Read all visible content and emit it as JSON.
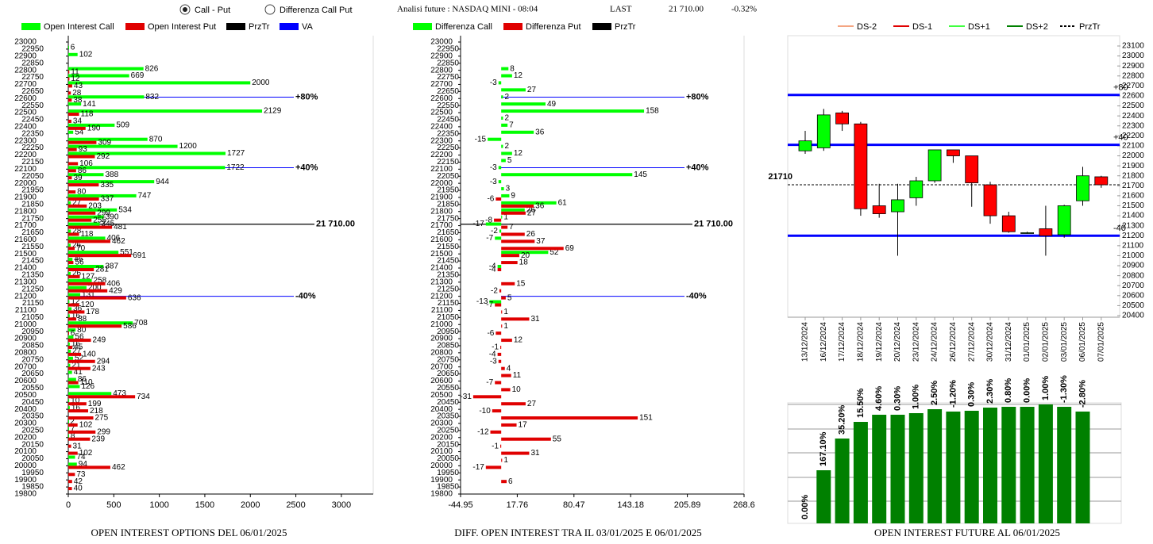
{
  "header": {
    "options": [
      {
        "label": "Call - Put",
        "checked": true
      },
      {
        "label": "Differenza Call Put",
        "checked": false
      }
    ],
    "title": "Analisi future : NASDAQ MINI - 08:04",
    "last_label": "LAST",
    "last": "21 710.00",
    "change": "-0.32%"
  },
  "chart_data": [
    {
      "type": "hbar",
      "title": "OPEN INTEREST OPTIONS DEL 06/01/2025",
      "y": [
        22950,
        22900,
        22850,
        22800,
        22750,
        22700,
        22650,
        22600,
        22550,
        22500,
        22450,
        22400,
        22350,
        22300,
        22250,
        22200,
        22150,
        22100,
        22050,
        22000,
        21950,
        21900,
        21850,
        21800,
        21750,
        21700,
        21650,
        21600,
        21550,
        21500,
        21450,
        21400,
        21350,
        21300,
        21250,
        21200,
        21150,
        21100,
        21050,
        21000,
        20950,
        20900,
        20850,
        20800,
        20750,
        20700,
        20650,
        20600,
        20550,
        20500,
        20450,
        20400,
        20350,
        20300,
        20250,
        20200,
        20150,
        20100,
        20050,
        20000,
        19950,
        19900,
        19850
      ],
      "series": [
        {
          "name": "Open Interest Call",
          "color": "#00ff00",
          "values": [
            6,
            102,
            null,
            826,
            669,
            2000,
            null,
            832,
            141,
            2129,
            null,
            509,
            54,
            870,
            1200,
            1727,
            null,
            1722,
            388,
            944,
            null,
            747,
            27,
            534,
            390,
            345,
            28,
            406,
            26,
            551,
            46,
            387,
            26,
            258,
            200,
            131,
            12,
            36,
            16,
            708,
            80,
            56,
            16,
            27,
            52,
            21,
            41,
            86,
            126,
            473,
            10,
            16,
            null,
            2,
            7,
            8,
            null,
            null,
            74,
            94,
            null,
            null,
            null
          ]
        },
        {
          "name": "Open Interest Put",
          "color": "#e00000",
          "values": [
            null,
            null,
            null,
            11,
            12,
            43,
            28,
            38,
            null,
            118,
            34,
            190,
            null,
            309,
            93,
            292,
            106,
            86,
            39,
            335,
            80,
            337,
            203,
            299,
            255,
            481,
            118,
            462,
            70,
            691,
            56,
            281,
            127,
            406,
            429,
            636,
            120,
            178,
            88,
            586,
            6,
            249,
            45,
            140,
            294,
            243,
            null,
            110,
            null,
            734,
            199,
            218,
            275,
            102,
            299,
            239,
            31,
            102,
            null,
            462,
            73,
            42,
            40
          ]
        }
      ],
      "legend_extra": [
        {
          "name": "PrzTr",
          "color": "#000000"
        },
        {
          "name": "VA",
          "color": "#0000ff"
        }
      ],
      "xlim": [
        0,
        3350
      ],
      "xticks": [
        0,
        500,
        1000,
        1500,
        2000,
        2500,
        3000
      ],
      "ylim": [
        19800,
        23000
      ],
      "yticks": [
        23000,
        22950,
        22900,
        22850,
        22800,
        22750,
        22700,
        22650,
        22600,
        22550,
        22500,
        22450,
        22400,
        22350,
        22300,
        22250,
        22200,
        22150,
        22100,
        22050,
        22000,
        21950,
        21900,
        21850,
        21800,
        21750,
        21700,
        21650,
        21600,
        21550,
        21500,
        21450,
        21400,
        21350,
        21300,
        21250,
        21200,
        21150,
        21100,
        21050,
        21000,
        20950,
        20900,
        20850,
        20800,
        20750,
        20700,
        20650,
        20600,
        20550,
        20500,
        20450,
        20400,
        20350,
        20300,
        20250,
        20200,
        20150,
        20100,
        20050,
        20000,
        19950,
        19900,
        19850,
        19800
      ],
      "reference_lines": [
        {
          "value": 22610,
          "label": "+80%",
          "color": "#0000ff"
        },
        {
          "value": 22110,
          "label": "+40%",
          "color": "#0000ff"
        },
        {
          "value": 21710,
          "label": "21 710.00",
          "color": "#000000"
        },
        {
          "value": 21200,
          "label": "-40%",
          "color": "#0000ff"
        }
      ]
    },
    {
      "type": "hbar",
      "title": "DIFF. OPEN INTEREST TRA IL 03/01/2025 E 06/01/2025",
      "y": [
        22950,
        22900,
        22850,
        22800,
        22750,
        22700,
        22650,
        22600,
        22550,
        22500,
        22450,
        22400,
        22350,
        22300,
        22250,
        22200,
        22150,
        22100,
        22050,
        22000,
        21950,
        21900,
        21850,
        21800,
        21750,
        21700,
        21650,
        21600,
        21550,
        21500,
        21450,
        21400,
        21350,
        21300,
        21250,
        21200,
        21150,
        21100,
        21050,
        21000,
        20950,
        20900,
        20850,
        20800,
        20750,
        20700,
        20650,
        20600,
        20550,
        20500,
        20450,
        20400,
        20350,
        20300,
        20250,
        20200,
        20150,
        20100,
        20050,
        20000,
        19950,
        19900,
        19850
      ],
      "series": [
        {
          "name": "Differenza Call",
          "color": "#00ff00",
          "values": [
            null,
            null,
            null,
            8,
            12,
            -3,
            27,
            2,
            49,
            158,
            2,
            7,
            36,
            -15,
            2,
            12,
            5,
            -3,
            145,
            -3,
            3,
            9,
            61,
            26,
            1,
            -17,
            -2,
            -7,
            null,
            52,
            null,
            -4,
            null,
            null,
            null,
            null,
            -13,
            null,
            null,
            null,
            null,
            null,
            null,
            null,
            null,
            null,
            null,
            null,
            null,
            null,
            null,
            null,
            null,
            null,
            null,
            null,
            null,
            null,
            null,
            null,
            null,
            null,
            null
          ]
        },
        {
          "name": "Differenza Put",
          "color": "#e00000",
          "values": [
            null,
            null,
            null,
            null,
            null,
            null,
            null,
            null,
            null,
            null,
            null,
            null,
            null,
            null,
            null,
            null,
            null,
            null,
            null,
            null,
            null,
            -6,
            36,
            27,
            -8,
            7,
            26,
            37,
            69,
            20,
            18,
            -4,
            null,
            15,
            -2,
            5,
            -7,
            1,
            31,
            1,
            -6,
            12,
            -1,
            -4,
            -3,
            4,
            11,
            -7,
            10,
            -31,
            27,
            -10,
            151,
            17,
            -12,
            55,
            -1,
            31,
            1,
            -17,
            null,
            6,
            null
          ]
        }
      ],
      "legend_extra": [
        {
          "name": "PrzTr",
          "color": "#000000"
        }
      ],
      "xlim": [
        -44.95,
        268.6
      ],
      "xticks": [
        -44.95,
        17.76,
        80.47,
        143.18,
        205.89,
        268.6
      ],
      "ylim": [
        19800,
        23000
      ],
      "yticks": [
        23000,
        22950,
        22900,
        22850,
        22800,
        22750,
        22700,
        22650,
        22600,
        22550,
        22500,
        22450,
        22400,
        22350,
        22300,
        22250,
        22200,
        22150,
        22100,
        22050,
        22000,
        21950,
        21900,
        21850,
        21800,
        21750,
        21700,
        21650,
        21600,
        21550,
        21500,
        21450,
        21400,
        21350,
        21300,
        21250,
        21200,
        21150,
        21100,
        21050,
        21000,
        20950,
        20900,
        20850,
        20800,
        20750,
        20700,
        20650,
        20600,
        20550,
        20500,
        20450,
        20400,
        20350,
        20300,
        20250,
        20200,
        20150,
        20100,
        20050,
        20000,
        19950,
        19900,
        19850,
        19800
      ],
      "reference_lines": [
        {
          "value": 22610,
          "label": "+80%",
          "color": "#0000ff"
        },
        {
          "value": 22110,
          "label": "+40%",
          "color": "#0000ff"
        },
        {
          "value": 21710,
          "label": "21 710.00",
          "color": "#000000"
        },
        {
          "value": 21200,
          "label": "-40%",
          "color": "#0000ff"
        }
      ]
    },
    {
      "type": "candlestick",
      "x": [
        "13/12/2024",
        "16/12/2024",
        "17/12/2024",
        "18/12/2024",
        "19/12/2024",
        "20/12/2024",
        "23/12/2024",
        "24/12/2024",
        "26/12/2024",
        "27/12/2024",
        "30/12/2024",
        "31/12/2024",
        "01/01/2025",
        "02/01/2025",
        "03/01/2025",
        "06/01/2025",
        "07/01/2025"
      ],
      "open": [
        22050,
        22080,
        22430,
        22320,
        21500,
        21440,
        21580,
        21750,
        22060,
        22000,
        21710,
        21400,
        21230,
        21270,
        21210,
        21550,
        21790
      ],
      "high": [
        22250,
        22470,
        22450,
        22340,
        21720,
        21720,
        21790,
        22060,
        22060,
        22000,
        21740,
        21440,
        21240,
        21500,
        21510,
        21890,
        21800
      ],
      "low": [
        22020,
        22050,
        22250,
        21400,
        21380,
        21000,
        21500,
        21730,
        21930,
        21490,
        21320,
        21230,
        21220,
        21000,
        21180,
        21500,
        21680
      ],
      "close": [
        22150,
        22410,
        22320,
        21470,
        21420,
        21560,
        21750,
        22060,
        22000,
        21730,
        21400,
        21240,
        21230,
        21200,
        21500,
        21800,
        21710
      ],
      "up_color": "#00ff00",
      "down_color": "#ff0000",
      "legend": [
        {
          "name": "DS-2",
          "color": "#f4a582"
        },
        {
          "name": "DS-1",
          "color": "#e00000"
        },
        {
          "name": "DS+1",
          "color": "#40ff40"
        },
        {
          "name": "DS+2",
          "color": "#008000"
        },
        {
          "name": "PrzTr",
          "color": "#000000",
          "dashed": true
        }
      ],
      "ylim": [
        20400,
        23100
      ],
      "yticks": [
        20400,
        20500,
        20600,
        20700,
        20800,
        20900,
        21000,
        21100,
        21200,
        21300,
        21400,
        21500,
        21600,
        21700,
        21800,
        21900,
        22000,
        22100,
        22200,
        22300,
        22400,
        22500,
        22600,
        22700,
        22800,
        22900,
        23000,
        23100
      ],
      "reference_lines": [
        {
          "value": 22610,
          "label": "+80",
          "color": "#0000ff"
        },
        {
          "value": 22110,
          "label": "+40",
          "color": "#0000ff"
        },
        {
          "value": 21200,
          "label": "-40",
          "color": "#0000ff"
        },
        {
          "value": 21710,
          "label": "21710",
          "color": "#000000",
          "dashed": true
        }
      ]
    },
    {
      "type": "bar",
      "title": "OPEN INTEREST FUTURE AL 06/01/2025",
      "color": "#008000",
      "values": [
        0,
        67,
        107,
        128,
        137,
        137,
        139,
        144,
        141,
        142,
        146,
        147,
        147,
        150,
        147,
        141
      ],
      "changes": [
        0,
        167.1,
        35.2,
        15.5,
        4.6,
        0.3,
        1,
        2.5,
        -1.2,
        0.3,
        2.3,
        0.8,
        0,
        1,
        -1.3,
        -2.8
      ],
      "change_labels": [
        "0.00%",
        "167.10%",
        "35.20%",
        "15.50%",
        "4.60%",
        "0.30%",
        "1.00%",
        "2.50%",
        "-1.20%",
        "0.30%",
        "2.30%",
        "0.80%",
        "0.00%",
        "1.00%",
        "-1.30%",
        "-2.80%"
      ],
      "ylim": [
        0,
        150
      ]
    }
  ]
}
